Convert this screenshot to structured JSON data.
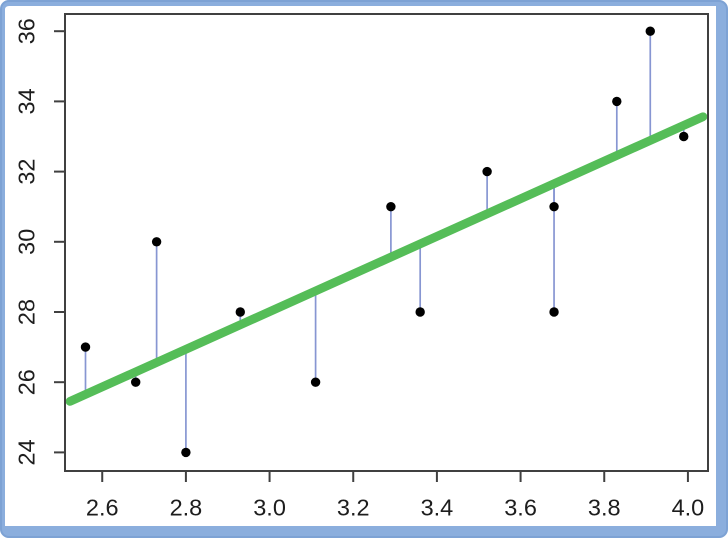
{
  "frame": {
    "fill": "#8BAEDD",
    "edge": "#6A92C8",
    "background": "#FFFFFF"
  },
  "chart_data": {
    "type": "scatter",
    "title": "",
    "xlabel": "",
    "ylabel": "",
    "grid": false,
    "legend": null,
    "xlim": [
      2.511,
      4.048
    ],
    "ylim": [
      23.47,
      36.49
    ],
    "x_ticks": [
      2.6,
      2.8,
      3.0,
      3.2,
      3.4,
      3.6,
      3.8,
      4.0
    ],
    "x_tick_labels": [
      "2.6",
      "2.8",
      "3.0",
      "3.2",
      "3.4",
      "3.6",
      "3.8",
      "4.0"
    ],
    "y_ticks": [
      24,
      26,
      28,
      30,
      32,
      34,
      36
    ],
    "y_tick_labels": [
      "24",
      "26",
      "28",
      "30",
      "32",
      "34",
      "36"
    ],
    "points": [
      [
        2.56,
        27
      ],
      [
        2.68,
        26
      ],
      [
        2.73,
        30
      ],
      [
        2.8,
        24
      ],
      [
        2.93,
        28
      ],
      [
        3.11,
        26
      ],
      [
        3.29,
        31
      ],
      [
        3.36,
        28
      ],
      [
        3.52,
        32
      ],
      [
        3.68,
        31
      ],
      [
        3.68,
        28
      ],
      [
        3.83,
        34
      ],
      [
        3.91,
        36
      ],
      [
        3.99,
        33
      ]
    ],
    "regression_line": {
      "slope": 5.36,
      "intercept": 11.93,
      "x_range": [
        2.523,
        4.036
      ],
      "color": "#55BD58",
      "width": 8.8
    },
    "residuals": {
      "show": true,
      "color": "#8796D2",
      "width": 1.7
    },
    "point_style": {
      "color": "#000000",
      "radius": 4.7
    },
    "axis": {
      "color": "#404040",
      "stroke_width": 2,
      "tick_len": 10,
      "label_color": "#1D1D1D",
      "label_size": 23.5
    }
  }
}
